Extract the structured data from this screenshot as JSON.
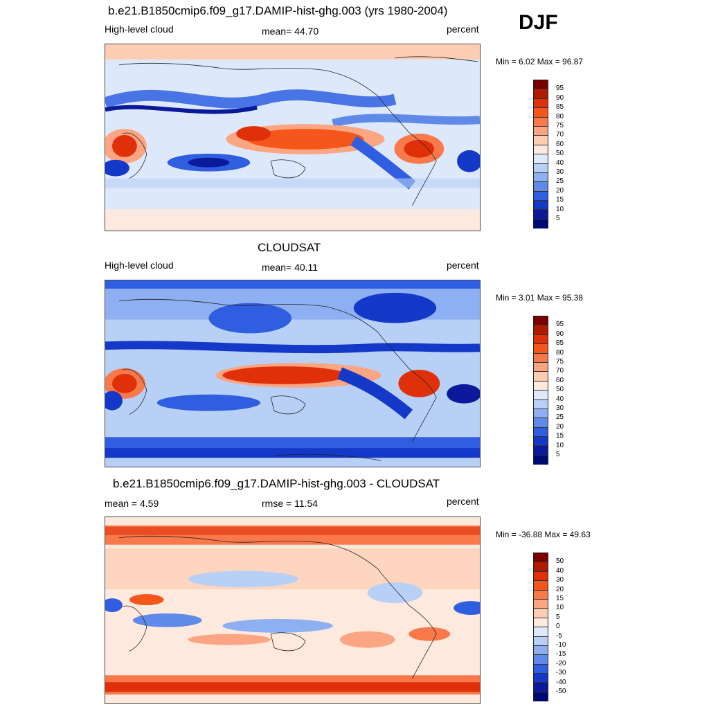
{
  "season": "DJF",
  "panels": [
    {
      "title": "b.e21.B1850cmip6.f09_g17.DAMIP-hist-ghg.003 (yrs 1980-2004)",
      "left_label": "High-level cloud",
      "center_label": "mean=  44.70",
      "right_label": "percent",
      "minmax": "Min =   6.02 Max =  96.87",
      "colorbar_levels": [
        "95",
        "90",
        "85",
        "80",
        "75",
        "70",
        "60",
        "50",
        "40",
        "30",
        "25",
        "20",
        "15",
        "10",
        "5"
      ]
    },
    {
      "title": "CLOUDSAT",
      "left_label": "High-level cloud",
      "center_label": "mean=  40.11",
      "right_label": "percent",
      "minmax": "Min =   3.01 Max =  95.38",
      "colorbar_levels": [
        "95",
        "90",
        "85",
        "80",
        "75",
        "70",
        "60",
        "50",
        "40",
        "30",
        "25",
        "20",
        "15",
        "10",
        "5"
      ]
    },
    {
      "title": "b.e21.B1850cmip6.f09_g17.DAMIP-hist-ghg.003 - CLOUDSAT",
      "left_label": "mean =   4.59",
      "center_label": "rmse =  11.54",
      "right_label": "percent",
      "minmax": "Min = -36.88 Max =  49.63",
      "colorbar_levels": [
        "50",
        "40",
        "30",
        "20",
        "15",
        "10",
        "5",
        "0",
        "-5",
        "-10",
        "-15",
        "-20",
        "-30",
        "-40",
        "-50"
      ]
    }
  ],
  "colorbar_colors": [
    "#7a0000",
    "#b01a00",
    "#e0300a",
    "#f4561c",
    "#f9794b",
    "#fba582",
    "#fdcdb3",
    "#fde9dd",
    "#dde9fb",
    "#b8d0f6",
    "#8eb0f2",
    "#5f8ae9",
    "#2f5fe0",
    "#1438c8",
    "#0a1a9a",
    "#000a73"
  ]
}
